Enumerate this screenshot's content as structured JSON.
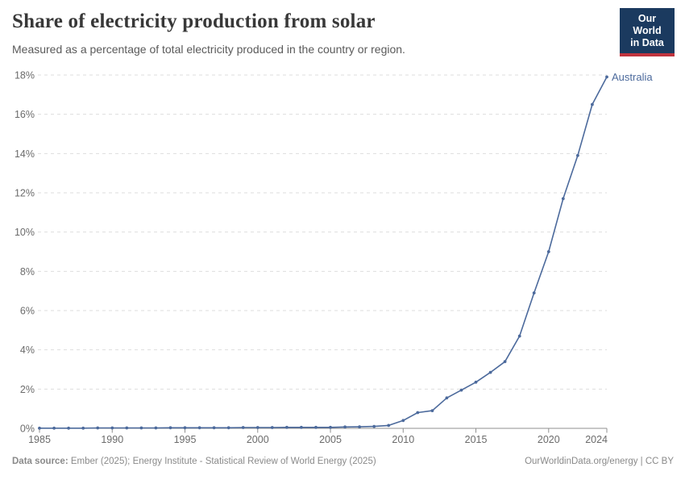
{
  "header": {
    "title": "Share of electricity production from solar",
    "subtitle": "Measured as a percentage of total electricity produced in the country or region.",
    "logo": {
      "line1": "Our World",
      "line2": "in Data",
      "bg_color": "#1b3a5f",
      "accent_color": "#c0333e"
    }
  },
  "chart_data": {
    "type": "line",
    "title": "Share of electricity production from solar",
    "xlabel": "",
    "ylabel": "",
    "x": [
      1985,
      1986,
      1987,
      1988,
      1989,
      1990,
      1991,
      1992,
      1993,
      1994,
      1995,
      1996,
      1997,
      1998,
      1999,
      2000,
      2001,
      2002,
      2003,
      2004,
      2005,
      2006,
      2007,
      2008,
      2009,
      2010,
      2011,
      2012,
      2013,
      2014,
      2015,
      2016,
      2017,
      2018,
      2019,
      2020,
      2021,
      2022,
      2023,
      2024
    ],
    "series": [
      {
        "name": "Australia",
        "color": "#4c6a9c",
        "values": [
          0.01,
          0.01,
          0.01,
          0.01,
          0.02,
          0.02,
          0.02,
          0.02,
          0.02,
          0.03,
          0.03,
          0.03,
          0.03,
          0.03,
          0.04,
          0.04,
          0.04,
          0.05,
          0.05,
          0.05,
          0.05,
          0.07,
          0.08,
          0.1,
          0.15,
          0.4,
          0.8,
          0.9,
          1.55,
          1.95,
          2.35,
          2.85,
          3.4,
          4.7,
          6.9,
          9.0,
          11.7,
          13.9,
          16.5,
          17.9
        ]
      }
    ],
    "end_label": "Australia",
    "ylim": [
      0,
      18
    ],
    "ytick_step": 2,
    "ytick_suffix": "%",
    "xticks": [
      1985,
      1990,
      1995,
      2000,
      2005,
      2010,
      2015,
      2020,
      2024
    ],
    "grid": "horizontal-dashed",
    "legend": "inline-end-label",
    "marker": "point-every-year"
  },
  "footer": {
    "source_label": "Data source:",
    "source_text": " Ember (2025); Energy Institute - Statistical Review of World Energy (2025)",
    "right_text": "OurWorldinData.org/energy | CC BY"
  }
}
